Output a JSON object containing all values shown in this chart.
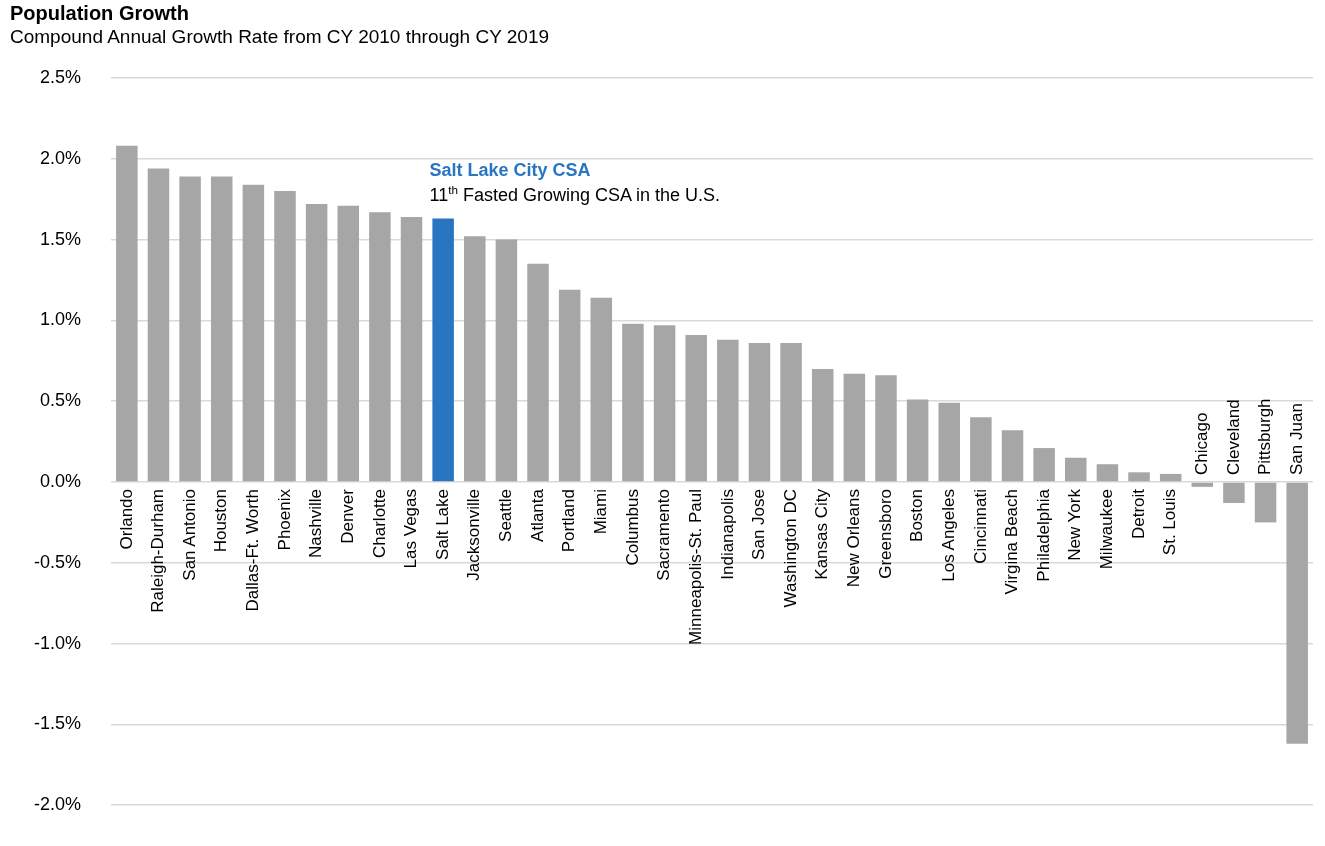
{
  "chart_data": {
    "type": "bar",
    "title": "Population Growth",
    "subtitle": "Compound Annual Growth Rate from CY 2010 through CY 2019",
    "categories": [
      "Orlando",
      "Raleigh-Durham",
      "San Antonio",
      "Houston",
      "Dallas-Ft. Worth",
      "Phoenix",
      "Nashville",
      "Denver",
      "Charlotte",
      "Las Vegas",
      "Salt Lake",
      "Jacksonville",
      "Seattle",
      "Atlanta",
      "Portland",
      "Miami",
      "Columbus",
      "Sacramento",
      "Minneapolis-St. Paul",
      "Indianapolis",
      "San Jose",
      "Washington DC",
      "Kansas City",
      "New Orleans",
      "Greensboro",
      "Boston",
      "Los Angeles",
      "Cincinnati",
      "Virgina Beach",
      "Philadelphia",
      "New York",
      "Milwaukee",
      "Detroit",
      "St. Louis",
      "Chicago",
      "Cleveland",
      "Pittsburgh",
      "San Juan"
    ],
    "values": [
      2.08,
      1.94,
      1.89,
      1.89,
      1.84,
      1.8,
      1.72,
      1.71,
      1.67,
      1.64,
      1.63,
      1.52,
      1.5,
      1.35,
      1.19,
      1.14,
      0.98,
      0.97,
      0.91,
      0.88,
      0.86,
      0.86,
      0.7,
      0.67,
      0.66,
      0.51,
      0.49,
      0.4,
      0.32,
      0.21,
      0.15,
      0.11,
      0.06,
      0.05,
      -0.03,
      -0.13,
      -0.25,
      -1.62
    ],
    "colors": [
      "#a6a6a6",
      "#a6a6a6",
      "#a6a6a6",
      "#a6a6a6",
      "#a6a6a6",
      "#a6a6a6",
      "#a6a6a6",
      "#a6a6a6",
      "#a6a6a6",
      "#a6a6a6",
      "#2a75c2",
      "#a6a6a6",
      "#a6a6a6",
      "#a6a6a6",
      "#a6a6a6",
      "#a6a6a6",
      "#a6a6a6",
      "#a6a6a6",
      "#a6a6a6",
      "#a6a6a6",
      "#a6a6a6",
      "#a6a6a6",
      "#a6a6a6",
      "#a6a6a6",
      "#a6a6a6",
      "#a6a6a6",
      "#a6a6a6",
      "#a6a6a6",
      "#a6a6a6",
      "#a6a6a6",
      "#a6a6a6",
      "#a6a6a6",
      "#a6a6a6",
      "#a6a6a6",
      "#a6a6a6",
      "#a6a6a6",
      "#a6a6a6",
      "#a6a6a6"
    ],
    "ylim": [
      -2.0,
      2.5
    ],
    "yticks": [
      {
        "value": -2.0,
        "label": "-2.0%"
      },
      {
        "value": -1.5,
        "label": "-1.5%"
      },
      {
        "value": -1.0,
        "label": "-1.0%"
      },
      {
        "value": -0.5,
        "label": "-0.5%"
      },
      {
        "value": 0.0,
        "label": "0.0%"
      },
      {
        "value": 0.5,
        "label": "0.5%"
      },
      {
        "value": 1.0,
        "label": "1.0%"
      },
      {
        "value": 1.5,
        "label": "1.5%"
      },
      {
        "value": 2.0,
        "label": "2.0%"
      },
      {
        "value": 2.5,
        "label": "2.5%"
      }
    ],
    "grid": "y",
    "legend": false,
    "annotations": [
      "Salt Lake City CSA",
      "11$^{th}$ Fasted Growing CSA in the U.S."
    ]
  }
}
